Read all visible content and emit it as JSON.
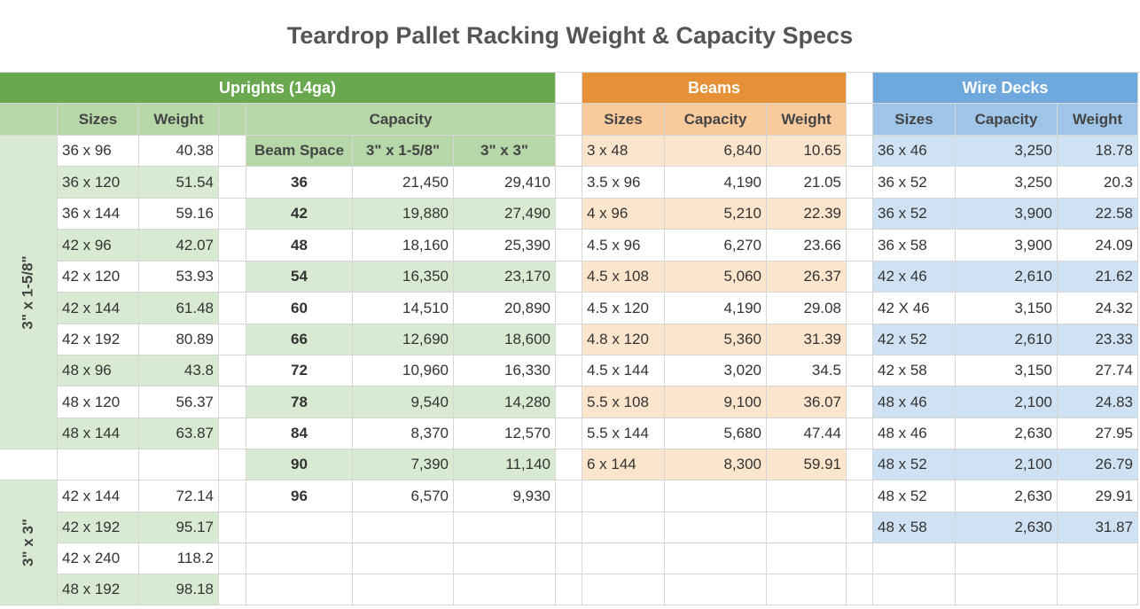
{
  "title": "Teardrop Pallet Racking Weight & Capacity Specs",
  "colors": {
    "uprights_band": "#6aa84f",
    "uprights_header": "#b6d7a8",
    "uprights_light": "#d9ead3",
    "beams_band": "#e69138",
    "beams_header": "#f9cb9c",
    "beams_light": "#fce5cd",
    "decks_band": "#6fa8dc",
    "decks_header": "#9fc5e8",
    "decks_light": "#cfe2f3"
  },
  "uprights": {
    "band_label": "Uprights (14ga)",
    "sizes_header": "Sizes",
    "weight_header": "Weight",
    "groups": [
      {
        "label": "3\" x 1-5/8\"",
        "rows": [
          {
            "size": "36 x 96",
            "weight": "40.38"
          },
          {
            "size": "36 x 120",
            "weight": "51.54"
          },
          {
            "size": "36 x 144",
            "weight": "59.16"
          },
          {
            "size": "42 x 96",
            "weight": "42.07"
          },
          {
            "size": "42 x 120",
            "weight": "53.93"
          },
          {
            "size": "42 x 144",
            "weight": "61.48"
          },
          {
            "size": "42 x 192",
            "weight": "80.89"
          },
          {
            "size": "48 x 96",
            "weight": "43.8"
          },
          {
            "size": "48 x 120",
            "weight": "56.37"
          },
          {
            "size": "48 x 144",
            "weight": "63.87"
          }
        ]
      },
      {
        "label": "3\" x 3\"",
        "rows": [
          {
            "size": "42 x 144",
            "weight": "72.14"
          },
          {
            "size": "42 x 192",
            "weight": "95.17"
          },
          {
            "size": "42 x 240",
            "weight": "118.2"
          },
          {
            "size": "48 x 192",
            "weight": "98.18"
          }
        ]
      }
    ],
    "capacity": {
      "header": "Capacity",
      "col_headers": [
        "Beam Space",
        "3\" x 1-5/8\"",
        "3\" x 3\""
      ],
      "rows": [
        {
          "space": "36",
          "c1": "21,450",
          "c2": "29,410"
        },
        {
          "space": "42",
          "c1": "19,880",
          "c2": "27,490"
        },
        {
          "space": "48",
          "c1": "18,160",
          "c2": "25,390"
        },
        {
          "space": "54",
          "c1": "16,350",
          "c2": "23,170"
        },
        {
          "space": "60",
          "c1": "14,510",
          "c2": "20,890"
        },
        {
          "space": "66",
          "c1": "12,690",
          "c2": "18,600"
        },
        {
          "space": "72",
          "c1": "10,960",
          "c2": "16,330"
        },
        {
          "space": "78",
          "c1": "9,540",
          "c2": "14,280"
        },
        {
          "space": "84",
          "c1": "8,370",
          "c2": "12,570"
        },
        {
          "space": "90",
          "c1": "7,390",
          "c2": "11,140"
        },
        {
          "space": "96",
          "c1": "6,570",
          "c2": "9,930"
        }
      ]
    }
  },
  "beams": {
    "band_label": "Beams",
    "headers": [
      "Sizes",
      "Capacity",
      "Weight"
    ],
    "rows": [
      {
        "size": "3 x 48",
        "capacity": "6,840",
        "weight": "10.65"
      },
      {
        "size": "3.5 x 96",
        "capacity": "4,190",
        "weight": "21.05"
      },
      {
        "size": "4 x 96",
        "capacity": "5,210",
        "weight": "22.39"
      },
      {
        "size": "4.5 x 96",
        "capacity": "6,270",
        "weight": "23.66"
      },
      {
        "size": "4.5 x 108",
        "capacity": "5,060",
        "weight": "26.37"
      },
      {
        "size": "4.5 x 120",
        "capacity": "4,190",
        "weight": "29.08"
      },
      {
        "size": "4.8 x 120",
        "capacity": "5,360",
        "weight": "31.39"
      },
      {
        "size": "4.5 x 144",
        "capacity": "3,020",
        "weight": "34.5"
      },
      {
        "size": "5.5 x 108",
        "capacity": "9,100",
        "weight": "36.07"
      },
      {
        "size": "5.5 x 144",
        "capacity": "5,680",
        "weight": "47.44"
      },
      {
        "size": "6 x 144",
        "capacity": "8,300",
        "weight": "59.91"
      }
    ]
  },
  "wire_decks": {
    "band_label": "Wire Decks",
    "headers": [
      "Sizes",
      "Capacity",
      "Weight"
    ],
    "rows": [
      {
        "size": "36 x 46",
        "capacity": "3,250",
        "weight": "18.78"
      },
      {
        "size": "36 x 52",
        "capacity": "3,250",
        "weight": "20.3"
      },
      {
        "size": "36 x 52",
        "capacity": "3,900",
        "weight": "22.58"
      },
      {
        "size": "36 x 58",
        "capacity": "3,900",
        "weight": "24.09"
      },
      {
        "size": "42 x 46",
        "capacity": "2,610",
        "weight": "21.62"
      },
      {
        "size": "42 X 46",
        "capacity": "3,150",
        "weight": "24.32"
      },
      {
        "size": "42 x 52",
        "capacity": "2,610",
        "weight": "23.33"
      },
      {
        "size": "42 x 58",
        "capacity": "3,150",
        "weight": "27.74"
      },
      {
        "size": "48 x 46",
        "capacity": "2,100",
        "weight": "24.83"
      },
      {
        "size": "48 x 46",
        "capacity": "2,630",
        "weight": "27.95"
      },
      {
        "size": "48 x 52",
        "capacity": "2,100",
        "weight": "26.79"
      },
      {
        "size": "48 x 52",
        "capacity": "2,630",
        "weight": "29.91"
      },
      {
        "size": "48 x 58",
        "capacity": "2,630",
        "weight": "31.87"
      }
    ]
  }
}
